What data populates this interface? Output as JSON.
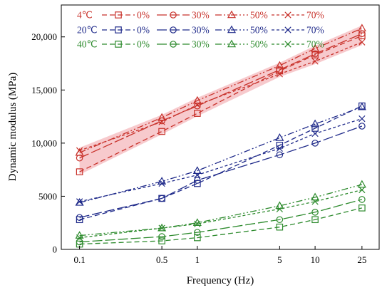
{
  "chart_data": {
    "type": "line",
    "title": "",
    "xlabel": "Frequency (Hz)",
    "ylabel": "Dynamic modulus (MPa)",
    "x_scale": "log",
    "x": [
      0.1,
      0.5,
      1,
      5,
      10,
      25
    ],
    "x_tick_labels": [
      "0.1",
      "0.5",
      "1",
      "5",
      "10",
      "25"
    ],
    "ylim": [
      0,
      23000
    ],
    "y_ticks": [
      0,
      5000,
      10000,
      15000,
      20000
    ],
    "y_tick_labels": [
      "0",
      "5000",
      "10,000",
      "15,000",
      "20,000"
    ],
    "grid": false,
    "legend_position": "top-left",
    "temperatures": [
      {
        "label": "4℃",
        "color": "#c8312a"
      },
      {
        "label": "20℃",
        "color": "#1f2a8a"
      },
      {
        "label": "40℃",
        "color": "#2e8b2e"
      }
    ],
    "contents": [
      {
        "label": "0%",
        "marker": "square",
        "dash": "7 4"
      },
      {
        "label": "30%",
        "marker": "circle",
        "dash": "14 4"
      },
      {
        "label": "50%",
        "marker": "triangle",
        "dash": "9 3 2 3 2 3"
      },
      {
        "label": "70%",
        "marker": "x",
        "dash": "4 3"
      }
    ],
    "series": [
      {
        "name": "4℃ 0%",
        "temp": 0,
        "content": 0,
        "values": [
          7300,
          11100,
          12800,
          16800,
          18300,
          20100
        ]
      },
      {
        "name": "4℃ 30%",
        "temp": 0,
        "content": 1,
        "values": [
          8600,
          12100,
          13500,
          16900,
          18400,
          20300
        ]
      },
      {
        "name": "4℃ 50%",
        "temp": 0,
        "content": 2,
        "values": [
          9100,
          12400,
          14000,
          17300,
          18900,
          20800
        ]
      },
      {
        "name": "4℃ 70%",
        "temp": 0,
        "content": 3,
        "values": [
          9300,
          12000,
          13600,
          16500,
          17700,
          19500
        ]
      },
      {
        "name": "20℃ 0%",
        "temp": 1,
        "content": 0,
        "values": [
          2800,
          4800,
          6200,
          9800,
          11400,
          13500
        ]
      },
      {
        "name": "20℃ 30%",
        "temp": 1,
        "content": 1,
        "values": [
          3000,
          4800,
          6500,
          8900,
          10000,
          11600
        ]
      },
      {
        "name": "20℃ 50%",
        "temp": 1,
        "content": 2,
        "values": [
          4400,
          6400,
          7400,
          10500,
          11800,
          13400
        ]
      },
      {
        "name": "20℃ 70%",
        "temp": 1,
        "content": 3,
        "values": [
          4500,
          6200,
          7000,
          9500,
          10900,
          12300
        ]
      },
      {
        "name": "40℃ 0%",
        "temp": 2,
        "content": 0,
        "values": [
          500,
          800,
          1100,
          2100,
          2800,
          3900
        ]
      },
      {
        "name": "40℃ 30%",
        "temp": 2,
        "content": 1,
        "values": [
          700,
          1200,
          1600,
          2800,
          3500,
          4700
        ]
      },
      {
        "name": "40℃ 50%",
        "temp": 2,
        "content": 2,
        "values": [
          1300,
          2000,
          2500,
          4100,
          4900,
          6100
        ]
      },
      {
        "name": "40℃ 70%",
        "temp": 2,
        "content": 3,
        "values": [
          1100,
          2000,
          2400,
          3800,
          4500,
          5600
        ]
      }
    ],
    "highlight": {
      "temp": 0,
      "color": "#f4b8bc"
    }
  }
}
